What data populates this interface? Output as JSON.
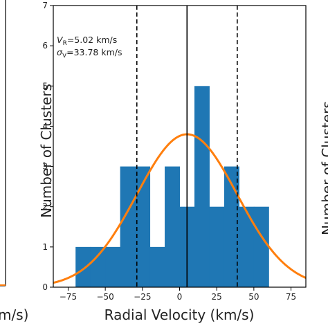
{
  "chart_data": {
    "type": "bar",
    "xlabel": "Radial Velocity (km/s)",
    "ylabel": "Number of Clusters",
    "xlim": [
      -85,
      85
    ],
    "ylim": [
      0,
      7
    ],
    "xticks": [
      -75,
      -50,
      -25,
      0,
      25,
      50,
      75
    ],
    "yticks": [
      0,
      1,
      2,
      3,
      4,
      5,
      6,
      7
    ],
    "xtick_labels": [
      "−75",
      "−50",
      "−25",
      "0",
      "25",
      "50",
      "75"
    ],
    "ytick_labels": [
      "0",
      "1",
      "2",
      "3",
      "4",
      "5",
      "6",
      "7"
    ],
    "bins": [
      {
        "x0": -70,
        "x1": -60,
        "count": 1
      },
      {
        "x0": -60,
        "x1": -50,
        "count": 1
      },
      {
        "x0": -50,
        "x1": -40,
        "count": 1
      },
      {
        "x0": -40,
        "x1": -30,
        "count": 3
      },
      {
        "x0": -30,
        "x1": -20,
        "count": 3
      },
      {
        "x0": -20,
        "x1": -10,
        "count": 1
      },
      {
        "x0": -10,
        "x1": 0,
        "count": 3
      },
      {
        "x0": 0,
        "x1": 10,
        "count": 2
      },
      {
        "x0": 10,
        "x1": 20,
        "count": 5
      },
      {
        "x0": 20,
        "x1": 30,
        "count": 2
      },
      {
        "x0": 30,
        "x1": 40,
        "count": 3
      },
      {
        "x0": 40,
        "x1": 50,
        "count": 2
      },
      {
        "x0": 50,
        "x1": 60,
        "count": 2
      }
    ],
    "bar_color": "#1f77b4",
    "gaussian": {
      "mean": 5.02,
      "sigma": 33.78,
      "amplitude": 3.8,
      "color": "#ff7f0e"
    },
    "vlines": [
      {
        "x": 5.02,
        "style": "solid",
        "color": "#000000"
      },
      {
        "x": -28.76,
        "style": "dashed",
        "color": "#000000"
      },
      {
        "x": 38.8,
        "style": "dashed",
        "color": "#000000"
      }
    ],
    "annotation": {
      "line1_sym": "V",
      "line1_sub": "R",
      "line1_rest": "=5.02 km/s",
      "line2_sym": "σ",
      "line2_sub": "V",
      "line2_rest": "=33.78 km/s"
    },
    "left_panel": {
      "xlabel_fragment": "m/s)"
    },
    "right_panel": {
      "ylabel_fragment": "Number of Clusters"
    }
  }
}
